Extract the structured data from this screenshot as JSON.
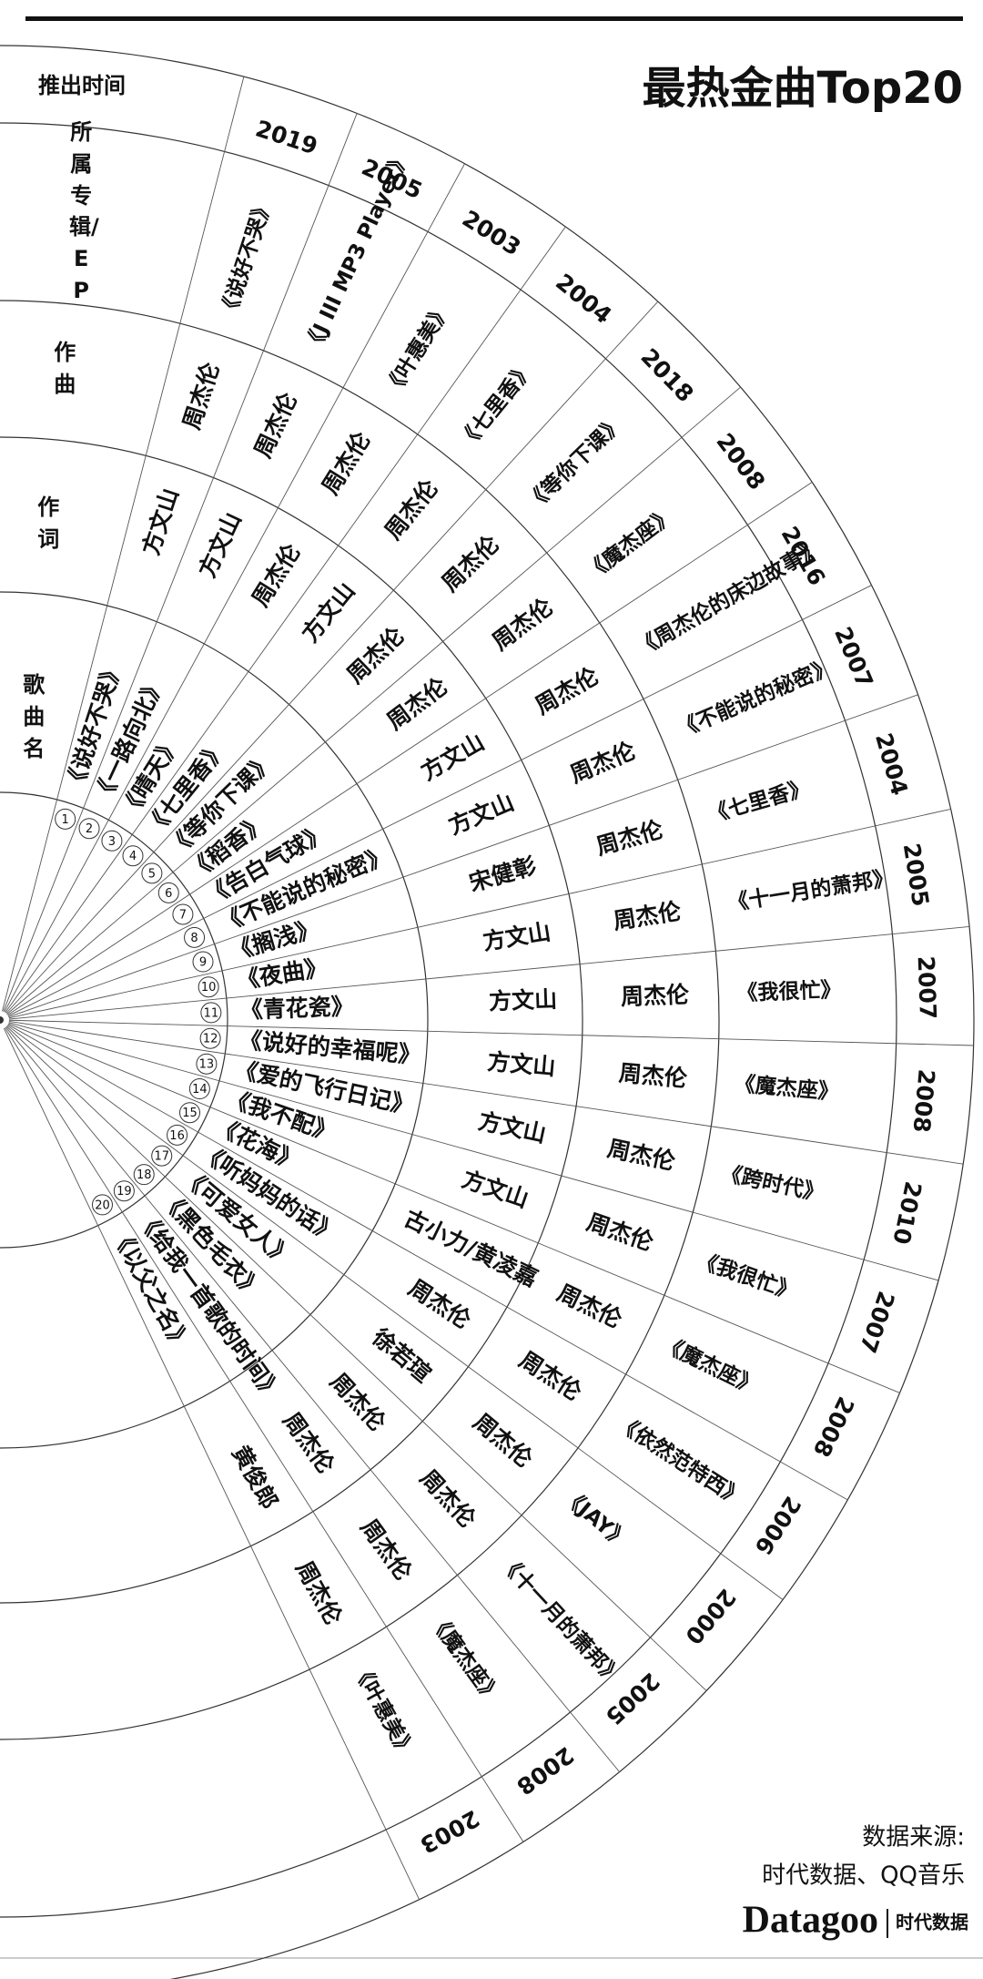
{
  "title": "最热金曲Top20",
  "headers": {
    "year": "推出时间",
    "album": "所属专辑/EP",
    "composer": "作曲",
    "lyricist": "作词",
    "song": "歌曲名"
  },
  "name_colors": {
    "周杰伦": "#d6597c",
    "方文山": "#2b2e8c"
  },
  "songs": [
    {
      "rank": 1,
      "name": "《说好不哭》",
      "lyricist": "方文山",
      "composer": "周杰伦",
      "album": "《说好不哭》",
      "year": 2019
    },
    {
      "rank": 2,
      "name": "《一路向北》",
      "lyricist": "方文山",
      "composer": "周杰伦",
      "album": "《J III MP3 Player》",
      "year": 2005
    },
    {
      "rank": 3,
      "name": "《晴天》",
      "lyricist": "周杰伦",
      "composer": "周杰伦",
      "album": "《叶惠美》",
      "year": 2003
    },
    {
      "rank": 4,
      "name": "《七里香》",
      "lyricist": "方文山",
      "composer": "周杰伦",
      "album": "《七里香》",
      "year": 2004
    },
    {
      "rank": 5,
      "name": "《等你下课》",
      "lyricist": "周杰伦",
      "composer": "周杰伦",
      "album": "《等你下课》",
      "year": 2018
    },
    {
      "rank": 6,
      "name": "《稻香》",
      "lyricist": "周杰伦",
      "composer": "周杰伦",
      "album": "《魔杰座》",
      "year": 2008
    },
    {
      "rank": 7,
      "name": "《告白气球》",
      "lyricist": "方文山",
      "composer": "周杰伦",
      "album": "《周杰伦的床边故事》",
      "year": 2016
    },
    {
      "rank": 8,
      "name": "《不能说的秘密》",
      "lyricist": "方文山",
      "composer": "周杰伦",
      "album": "《不能说的秘密》",
      "year": 2007
    },
    {
      "rank": 9,
      "name": "《搁浅》",
      "lyricist": "宋健彰",
      "composer": "周杰伦",
      "album": "《七里香》",
      "year": 2004
    },
    {
      "rank": 10,
      "name": "《夜曲》",
      "lyricist": "方文山",
      "composer": "周杰伦",
      "album": "《十一月的萧邦》",
      "year": 2005
    },
    {
      "rank": 11,
      "name": "《青花瓷》",
      "lyricist": "方文山",
      "composer": "周杰伦",
      "album": "《我很忙》",
      "year": 2007
    },
    {
      "rank": 12,
      "name": "《说好的幸福呢》",
      "lyricist": "方文山",
      "composer": "周杰伦",
      "album": "《魔杰座》",
      "year": 2008
    },
    {
      "rank": 13,
      "name": "《爱的飞行日记》",
      "lyricist": "方文山",
      "composer": "周杰伦",
      "album": "《跨时代》",
      "year": 2010
    },
    {
      "rank": 14,
      "name": "《我不配》",
      "lyricist": "方文山",
      "composer": "周杰伦",
      "album": "《我很忙》",
      "year": 2007
    },
    {
      "rank": 15,
      "name": "《花海》",
      "lyricist": "古小力/黄凌嘉",
      "composer": "周杰伦",
      "album": "《魔杰座》",
      "year": 2008
    },
    {
      "rank": 16,
      "name": "《听妈妈的话》",
      "lyricist": "周杰伦",
      "composer": "周杰伦",
      "album": "《依然范特西》",
      "year": 2006
    },
    {
      "rank": 17,
      "name": "《可爱女人》",
      "lyricist": "徐若瑄",
      "composer": "周杰伦",
      "album": "《JAY》",
      "year": 2000
    },
    {
      "rank": 18,
      "name": "《黑色毛衣》",
      "lyricist": "周杰伦",
      "composer": "周杰伦",
      "album": "《十一月的萧邦》",
      "year": 2005
    },
    {
      "rank": 19,
      "name": "《给我一首歌的时间》",
      "lyricist": "周杰伦",
      "composer": "周杰伦",
      "album": "《魔杰座》",
      "year": 2008
    },
    {
      "rank": 20,
      "name": "《以父之名》",
      "lyricist": "黄俊郎",
      "composer": "周杰伦",
      "album": "《叶惠美》",
      "year": 2003
    }
  ],
  "source_label": "数据来源:",
  "source": "时代数据、QQ音乐",
  "brand": "Datagoo",
  "brand_sub": "时代数据"
}
